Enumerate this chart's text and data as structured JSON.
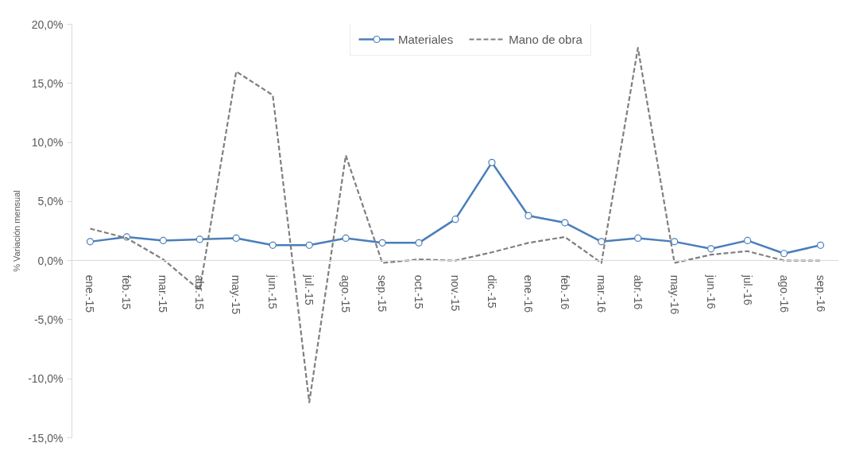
{
  "chart_data": {
    "type": "line",
    "ylabel": "% Variación mensual",
    "categories": [
      "ene.-15",
      "feb.-15",
      "mar.-15",
      "abr.-15",
      "may.-15",
      "jun.-15",
      "jul.-15",
      "ago.-15",
      "sep.-15",
      "oct.-15",
      "nov.-15",
      "dic.-15",
      "ene.-16",
      "feb.-16",
      "mar.-16",
      "abr.-16",
      "may.-16",
      "jun.-16",
      "jul.-16",
      "ago.-16",
      "sep.-16"
    ],
    "series": [
      {
        "name": "Materiales",
        "color": "#4a7ebb",
        "marker": "circle",
        "line_style": "solid",
        "values": [
          1.6,
          2.0,
          1.7,
          1.8,
          1.9,
          1.3,
          1.3,
          1.9,
          1.5,
          1.5,
          3.5,
          8.3,
          3.8,
          3.2,
          1.6,
          1.9,
          1.6,
          1.0,
          1.7,
          0.6,
          1.3
        ]
      },
      {
        "name": "Mano de obra",
        "color": "#7f7f7f",
        "marker": "none",
        "line_style": "dashed",
        "values": [
          2.7,
          1.9,
          0.1,
          -2.5,
          16.0,
          14.0,
          -12.0,
          8.9,
          -0.2,
          0.1,
          0.0,
          0.7,
          1.5,
          2.0,
          -0.2,
          18.0,
          -0.2,
          0.5,
          0.8,
          0.0,
          0.0
        ]
      }
    ],
    "ylim": [
      -15,
      20
    ],
    "yticks": [
      {
        "value": -15,
        "label": "-15,0%"
      },
      {
        "value": -10,
        "label": "-10,0%"
      },
      {
        "value": -5,
        "label": "-5,0%"
      },
      {
        "value": 0,
        "label": "0,0%"
      },
      {
        "value": 5,
        "label": "5,0%"
      },
      {
        "value": 10,
        "label": "10,0%"
      },
      {
        "value": 15,
        "label": "15,0%"
      },
      {
        "value": 20,
        "label": "20,0%"
      }
    ],
    "grid": false,
    "legend": "top"
  }
}
